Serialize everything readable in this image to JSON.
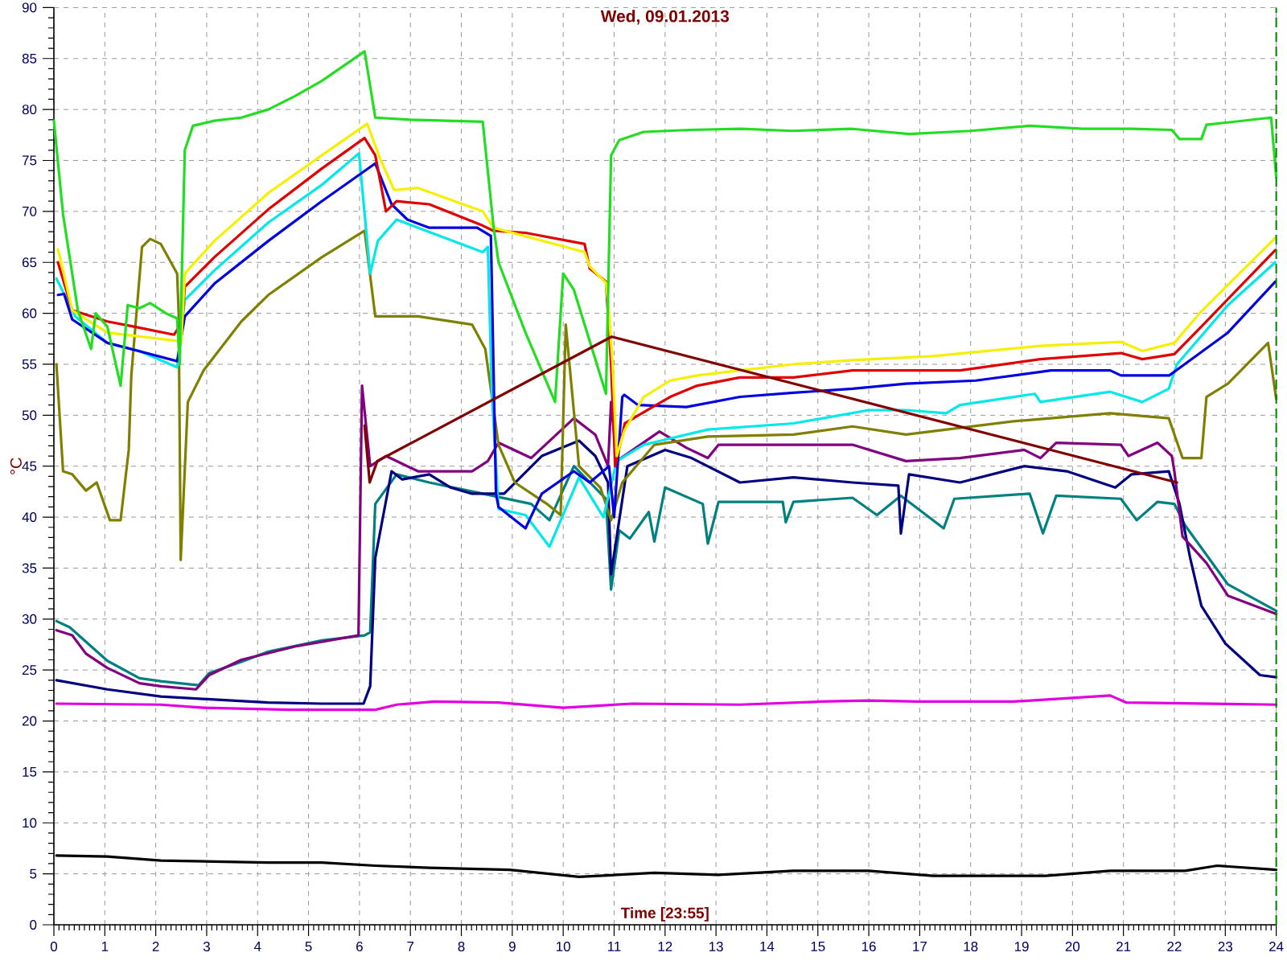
{
  "chart_data": {
    "type": "line",
    "title": "Wed, 09.01.2013",
    "xlabel": "Time [23:55]",
    "ylabel": "°C",
    "xlim": [
      0,
      24
    ],
    "ylim": [
      0,
      90
    ],
    "xticks": [
      0,
      1,
      2,
      3,
      4,
      5,
      6,
      7,
      8,
      9,
      10,
      11,
      12,
      13,
      14,
      15,
      16,
      17,
      18,
      19,
      20,
      21,
      22,
      23,
      24
    ],
    "yticks": [
      0,
      5,
      10,
      15,
      20,
      25,
      30,
      35,
      40,
      45,
      50,
      55,
      60,
      65,
      70,
      75,
      80,
      85,
      90
    ],
    "grid": true,
    "marker": "none",
    "ref_lines": [
      {
        "axis": "x",
        "value": 24,
        "color": "#008000",
        "line_style": "dashed"
      }
    ],
    "series": [
      {
        "color": "#000000",
        "x": [
          0.05,
          1.05,
          2.1,
          3.15,
          4.21,
          5.26,
          6.31,
          7.37,
          8.95,
          10.31,
          11.79,
          13.05,
          14.52,
          16.0,
          17.26,
          19.47,
          20.74,
          22.21,
          22.84,
          24.0
        ],
        "values": [
          6.8,
          6.7,
          6.3,
          6.2,
          6.1,
          6.1,
          5.8,
          5.6,
          5.4,
          4.7,
          5.1,
          4.9,
          5.3,
          5.3,
          4.8,
          4.8,
          5.3,
          5.3,
          5.8,
          5.4
        ]
      },
      {
        "color": "#e000e0",
        "x": [
          0.05,
          2.1,
          2.94,
          4.63,
          6.31,
          6.73,
          7.47,
          8.73,
          10.0,
          11.37,
          13.47,
          15.05,
          16.0,
          16.95,
          18.84,
          20.74,
          21.06,
          24.0
        ],
        "values": [
          21.7,
          21.6,
          21.3,
          21.1,
          21.1,
          21.6,
          21.9,
          21.8,
          21.3,
          21.7,
          21.6,
          21.9,
          22,
          21.9,
          21.9,
          22.5,
          21.8,
          21.6
        ]
      },
      {
        "color": "#008080",
        "x": [
          0.05,
          0.31,
          1.05,
          1.68,
          2.1,
          2.84,
          3.05,
          3.68,
          4.21,
          5.26,
          6.1,
          6.21,
          6.31,
          6.73,
          7.37,
          8.42,
          9.37,
          9.73,
          10.21,
          10.84,
          10.94,
          11.1,
          11.31,
          11.68,
          11.79,
          12.0,
          12.74,
          12.84,
          13.05,
          14.31,
          14.37,
          14.52,
          15.68,
          16.16,
          16.63,
          17.47,
          17.68,
          19.16,
          19.42,
          19.68,
          20.95,
          21.26,
          21.67,
          22.0,
          22.21,
          23.05,
          24.0
        ],
        "values": [
          29.8,
          29.2,
          25.9,
          24.2,
          23.9,
          23.5,
          24.7,
          25.8,
          26.8,
          27.9,
          28.4,
          28.7,
          41.3,
          44.2,
          43.4,
          42.3,
          41.3,
          39.7,
          45,
          41.8,
          32.9,
          38.7,
          37.9,
          40.5,
          37.6,
          42.9,
          41.3,
          37.4,
          41.5,
          41.5,
          39.5,
          41.5,
          41.9,
          40.2,
          42.1,
          38.9,
          41.8,
          42.3,
          38.4,
          42.1,
          41.8,
          39.7,
          41.5,
          41.3,
          39.2,
          33.4,
          30.8
        ]
      },
      {
        "color": "#000080",
        "x": [
          0.05,
          1.05,
          2.1,
          3.15,
          4.21,
          5.26,
          6.08,
          6.21,
          6.31,
          6.63,
          6.84,
          7.37,
          7.79,
          8.21,
          8.84,
          9.58,
          10.31,
          10.63,
          10.88,
          10.94,
          11.26,
          12.0,
          12.52,
          13.47,
          14.52,
          15.68,
          16.58,
          16.63,
          16.79,
          17.79,
          19.05,
          19.89,
          20.84,
          21.16,
          21.89,
          22.1,
          22.31,
          22.53,
          23.0,
          23.68,
          24.0
        ],
        "values": [
          24,
          23.1,
          22.4,
          22.1,
          21.8,
          21.7,
          21.7,
          23.4,
          36,
          44.5,
          43.7,
          44.2,
          42.9,
          42.3,
          42.3,
          46,
          47.5,
          46,
          43.4,
          34.4,
          45,
          46.6,
          45.8,
          43.4,
          43.9,
          43.4,
          43.1,
          38.4,
          44.2,
          43.4,
          45,
          44.5,
          42.9,
          44.2,
          44.5,
          41.3,
          36,
          31.3,
          27.6,
          24.5,
          24.3
        ]
      },
      {
        "color": "#800080",
        "x": [
          0.05,
          0.36,
          0.63,
          1.05,
          1.68,
          2.1,
          2.79,
          3.05,
          3.68,
          4.73,
          5.98,
          6.05,
          6.21,
          6.52,
          7.15,
          8.21,
          8.52,
          8.73,
          9.37,
          10.21,
          10.63,
          10.88,
          10.94,
          11.05,
          11.89,
          12.42,
          12.84,
          13.05,
          14.52,
          15.68,
          16.73,
          17.79,
          19.05,
          19.37,
          19.68,
          20.95,
          21.1,
          21.67,
          21.95,
          22.0,
          22.16,
          22.63,
          23.05,
          24.0
        ],
        "values": [
          28.9,
          28.4,
          26.6,
          25.2,
          23.7,
          23.4,
          23.1,
          24.5,
          26,
          27.3,
          28.4,
          52.9,
          45,
          46,
          44.5,
          44.5,
          45.5,
          47.3,
          45.8,
          49.7,
          48.1,
          45,
          51.3,
          45.5,
          48.4,
          46.8,
          45.8,
          47.1,
          47.1,
          47.1,
          45.5,
          45.8,
          46.6,
          45.8,
          47.3,
          47.1,
          46,
          47.3,
          46,
          44.5,
          38.1,
          35.5,
          32.3,
          30.5
        ]
      },
      {
        "color": "#808000",
        "x": [
          0.05,
          0.18,
          0.36,
          0.63,
          0.84,
          1.1,
          1.31,
          1.47,
          1.52,
          1.73,
          1.89,
          2.1,
          2.42,
          2.45,
          2.49,
          2.63,
          2.94,
          3.68,
          4.21,
          5.26,
          6.1,
          6.31,
          7.15,
          8.21,
          8.47,
          8.73,
          9.05,
          9.68,
          9.95,
          10.05,
          10.31,
          10.73,
          10.94,
          11.16,
          11.79,
          12.84,
          14.52,
          15.68,
          16.73,
          18.84,
          20.74,
          21.89,
          22.16,
          22.53,
          22.63,
          23.05,
          23.84,
          24.0
        ],
        "values": [
          55,
          44.5,
          44.2,
          42.6,
          43.4,
          39.7,
          39.7,
          46.6,
          53.9,
          66.5,
          67.3,
          66.8,
          63.9,
          60,
          35.8,
          51.3,
          54.4,
          59.2,
          61.8,
          65.5,
          68.1,
          59.7,
          59.7,
          58.9,
          56.5,
          47.1,
          43.4,
          41.3,
          40.2,
          58.9,
          45,
          42.9,
          39.7,
          43.4,
          47.1,
          47.9,
          48.1,
          48.9,
          48.1,
          49.4,
          50.2,
          49.7,
          45.8,
          45.8,
          51.8,
          53.1,
          57.1,
          51.6
        ]
      },
      {
        "color": "#00e8e8",
        "x": [
          0.05,
          0.42,
          1.05,
          1.68,
          2.42,
          2.57,
          3.15,
          4.21,
          5.26,
          5.99,
          6.21,
          6.36,
          6.73,
          7.15,
          8.42,
          8.52,
          8.6,
          8.73,
          9.26,
          9.73,
          10.31,
          10.79,
          11.05,
          11.58,
          12.0,
          12.84,
          14.52,
          16.0,
          16.73,
          17.52,
          17.79,
          19.26,
          19.37,
          20.74,
          21.37,
          21.89,
          22.05,
          23.05,
          23.98
        ],
        "values": [
          63.4,
          59.7,
          57.1,
          56.3,
          54.7,
          61.3,
          64.2,
          68.9,
          72.6,
          75.7,
          63.9,
          67.1,
          69.2,
          68.4,
          66,
          66.5,
          52,
          40.8,
          40.2,
          37.1,
          43.9,
          40,
          45.5,
          47.1,
          47.6,
          48.6,
          49.2,
          50.5,
          50.5,
          50.2,
          51,
          52.1,
          51.3,
          52.3,
          51.3,
          52.6,
          55,
          60.8,
          65
        ]
      },
      {
        "color": "#0000e0",
        "x": [
          0.08,
          0.2,
          0.36,
          1.05,
          1.89,
          2.42,
          2.57,
          3.15,
          4.21,
          5.26,
          6.31,
          6.63,
          6.94,
          7.37,
          8.31,
          8.58,
          8.68,
          8.73,
          9.26,
          9.58,
          10.21,
          10.52,
          10.9,
          11.0,
          11.16,
          11.2,
          11.47,
          12.42,
          13.47,
          14.52,
          15.68,
          16.73,
          18.1,
          19.58,
          20.74,
          20.95,
          21.9,
          22.2,
          23.05,
          23.98
        ],
        "values": [
          61.8,
          61.9,
          59.4,
          57.1,
          56,
          55.3,
          59.7,
          62.9,
          67.1,
          71,
          74.7,
          70.7,
          69.2,
          68.4,
          68.4,
          67.6,
          42.3,
          41,
          38.9,
          42.3,
          44.5,
          43.4,
          45,
          40,
          51.8,
          52,
          51,
          50.8,
          51.8,
          52.2,
          52.6,
          53.1,
          53.4,
          54.4,
          54.4,
          53.9,
          53.9,
          55,
          58.1,
          63.1
        ]
      },
      {
        "color": "#e00000",
        "x": [
          0.08,
          0.36,
          1.05,
          1.57,
          2.36,
          2.52,
          2.57,
          3.15,
          4.21,
          5.26,
          6.1,
          6.31,
          6.52,
          6.73,
          7.37,
          8.42,
          8.63,
          9.26,
          10.42,
          10.52,
          10.84,
          10.94,
          11.02,
          11.21,
          11.58,
          12.1,
          12.63,
          13.47,
          14.52,
          15.68,
          17.79,
          19.37,
          20.95,
          21.37,
          22.0,
          22.53,
          23.98
        ],
        "values": [
          65,
          60.3,
          59.2,
          58.7,
          57.9,
          59.2,
          62.6,
          65.5,
          70.2,
          74.2,
          77.2,
          75.5,
          70,
          71,
          70.7,
          68.6,
          68.1,
          67.9,
          66.8,
          64.4,
          63.1,
          55,
          45,
          49.2,
          50.3,
          51.8,
          52.9,
          53.7,
          53.7,
          54.4,
          54.4,
          55.5,
          56.1,
          55.5,
          56,
          58.7,
          66.2
        ]
      },
      {
        "color": "#f5f000",
        "x": [
          0.08,
          0.36,
          1.05,
          2.42,
          2.5,
          2.57,
          3.15,
          4.21,
          5.26,
          6.15,
          6.42,
          6.68,
          7.15,
          8.42,
          8.63,
          10.42,
          10.52,
          10.84,
          10.9,
          10.97,
          11.05,
          11.2,
          11.58,
          12.1,
          12.63,
          13.47,
          14.52,
          15.68,
          17.26,
          19.37,
          20.95,
          21.37,
          22.0,
          22.53,
          23.98
        ],
        "values": [
          66.3,
          60.3,
          58.1,
          57.3,
          57.1,
          63.9,
          67.1,
          71.8,
          75.5,
          78.6,
          75,
          72.1,
          72.3,
          70,
          68.4,
          66,
          64.6,
          63,
          60,
          55,
          46,
          48.5,
          51.8,
          53.4,
          53.9,
          54.4,
          55,
          55.4,
          55.8,
          56.8,
          57.2,
          56.3,
          57.1,
          60.2,
          67.4
        ]
      },
      {
        "color": "#22dd22",
        "x": [
          0,
          0.18,
          0.47,
          0.73,
          0.82,
          1.05,
          1.31,
          1.45,
          1.68,
          1.89,
          2.2,
          2.42,
          2.47,
          2.57,
          2.73,
          3.15,
          3.68,
          4.21,
          4.73,
          5.26,
          6.1,
          6.31,
          7.0,
          8.42,
          8.63,
          8.73,
          9.26,
          9.84,
          10.0,
          10.21,
          10.84,
          10.94,
          11.1,
          11.58,
          12.5,
          13.5,
          14.5,
          15.68,
          16.79,
          18.0,
          19.16,
          20.2,
          21.15,
          21.95,
          22.1,
          22.53,
          22.63,
          23.9,
          24
        ],
        "values": [
          78.9,
          69.7,
          60.3,
          56.5,
          60,
          58.7,
          52.9,
          60.8,
          60.5,
          61,
          60,
          59.5,
          55,
          76,
          78.4,
          78.9,
          79.2,
          80,
          81.3,
          82.8,
          85.7,
          79.2,
          79,
          78.8,
          68.6,
          65,
          58.1,
          51.3,
          63.9,
          62.3,
          52.1,
          75.5,
          77,
          77.8,
          78,
          78.1,
          77.9,
          78.1,
          77.6,
          77.9,
          78.4,
          78.1,
          78.1,
          78.0,
          77.1,
          77.1,
          78.5,
          79.2,
          73.4
        ]
      },
      {
        "color": "#800000",
        "x": [
          6.1,
          6.2,
          6.35,
          10.95,
          22.05
        ],
        "values": [
          49,
          43.4,
          45.5,
          57.7,
          43.4
        ]
      }
    ]
  }
}
